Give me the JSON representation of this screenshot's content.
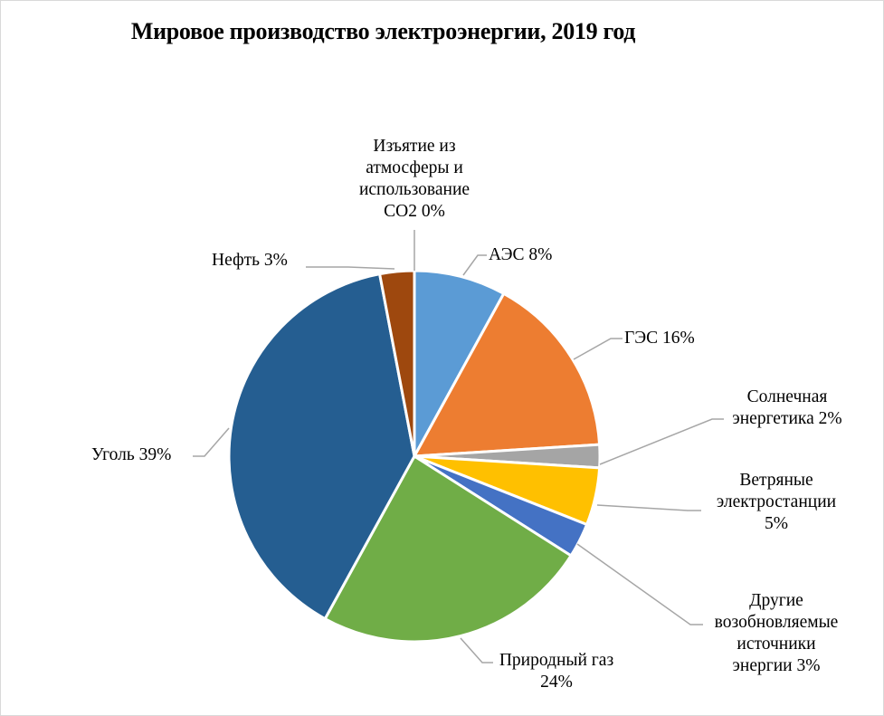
{
  "chart_data": {
    "type": "pie",
    "title": "Мировое производство электроэнергии, 2019 год",
    "start_angle_deg": 0,
    "direction": "clockwise",
    "center": [
      458,
      504
    ],
    "radius": 205,
    "slices": [
      {
        "name": "АЭС",
        "value": 8,
        "label": "АЭС 8%",
        "color": "#5B9BD5"
      },
      {
        "name": "ГЭС",
        "value": 16,
        "label": "ГЭС 16%",
        "color": "#ED7D31"
      },
      {
        "name": "Солнечная энергетика",
        "value": 2,
        "label": "Солнечная энергетика 2%",
        "color": "#A5A5A5"
      },
      {
        "name": "Ветряные электростанции",
        "value": 5,
        "label": "Ветряные электростанции 5%",
        "color": "#FFC000"
      },
      {
        "name": "Другие возобновляемые источники энергии",
        "value": 3,
        "label": "Другие возобновляемые источники энергии 3%",
        "color": "#4472C4"
      },
      {
        "name": "Природный газ",
        "value": 24,
        "label": "Природный газ 24%",
        "color": "#70AD47"
      },
      {
        "name": "Уголь",
        "value": 39,
        "label": "Уголь 39%",
        "color": "#255E91"
      },
      {
        "name": "Нефть",
        "value": 3,
        "label": "Нефть 3%",
        "color": "#9E480E"
      },
      {
        "name": "Изъятие из атмосферы и использование CO2",
        "value": 0,
        "label": "Изъятие из атмосферы и использование CO2 0%",
        "color": "#636363"
      }
    ]
  },
  "labels": {
    "co2": [
      "Изъятие из",
      "атмосферы и",
      "использование",
      "CO2 0%"
    ],
    "aes": [
      "АЭС 8%"
    ],
    "ges": [
      "ГЭС 16%"
    ],
    "solar": [
      "Солнечная",
      "энергетика 2%"
    ],
    "wind": [
      "Ветряные",
      "электростанции",
      "5%"
    ],
    "other": [
      "Другие",
      "возобновляемые",
      "источники",
      "энергии 3%"
    ],
    "gas": [
      "Природный газ",
      "24%"
    ],
    "coal": [
      "Уголь 39%"
    ],
    "oil": [
      "Нефть 3%"
    ]
  },
  "leader_line_color": "#A6A6A6"
}
